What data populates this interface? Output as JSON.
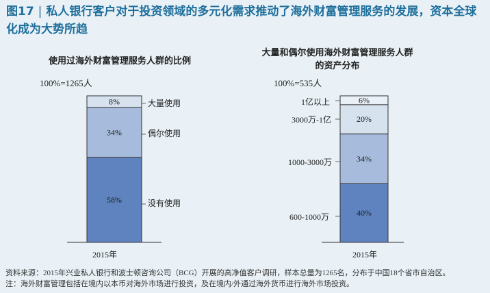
{
  "figure": {
    "number": "图17",
    "separator": "|",
    "title": "私人银行客户对于投资领域的多元化需求推动了海外财富管理服务的发展，资本全球化成为大势所趋"
  },
  "colors": {
    "title": "#1f6f9c",
    "dark": "#5f83be",
    "mid": "#a7bcdc",
    "light": "#d7e2ef",
    "lightest": "#eaf0f7",
    "outline": "#333333"
  },
  "chart_data": [
    {
      "type": "bar",
      "stacked": true,
      "title": "使用过海外财富管理服务人群的比例",
      "base_label": "100%=1265人",
      "categories": [
        "2015年"
      ],
      "ylim": [
        0,
        100
      ],
      "unit": "%",
      "series": [
        {
          "name": "没有使用",
          "values": [
            58
          ]
        },
        {
          "name": "偶尔使用",
          "values": [
            34
          ]
        },
        {
          "name": "大量使用",
          "values": [
            8
          ]
        }
      ]
    },
    {
      "type": "bar",
      "stacked": true,
      "title": "大量和偶尔使用海外财富管理服务人群的资产分布",
      "base_label": "100%=535人",
      "categories": [
        "2015年"
      ],
      "ylim": [
        0,
        100
      ],
      "unit": "%",
      "series": [
        {
          "name": "600-1000万",
          "values": [
            40
          ]
        },
        {
          "name": "1000-3000万",
          "values": [
            34
          ]
        },
        {
          "name": "3000万-1亿",
          "values": [
            20
          ]
        },
        {
          "name": "1亿以上",
          "values": [
            6
          ]
        }
      ]
    }
  ],
  "source_lines": [
    "资料来源：2015年兴业私人银行和波士顿咨询公司（BCG）开展的高净值客户调研，样本总量为1265名，分布于中国18个省市自治区。",
    "注：海外财富管理包括在境内以本币对海外市场进行投资，及在境内/外通过海外货币进行海外市场投资。"
  ]
}
